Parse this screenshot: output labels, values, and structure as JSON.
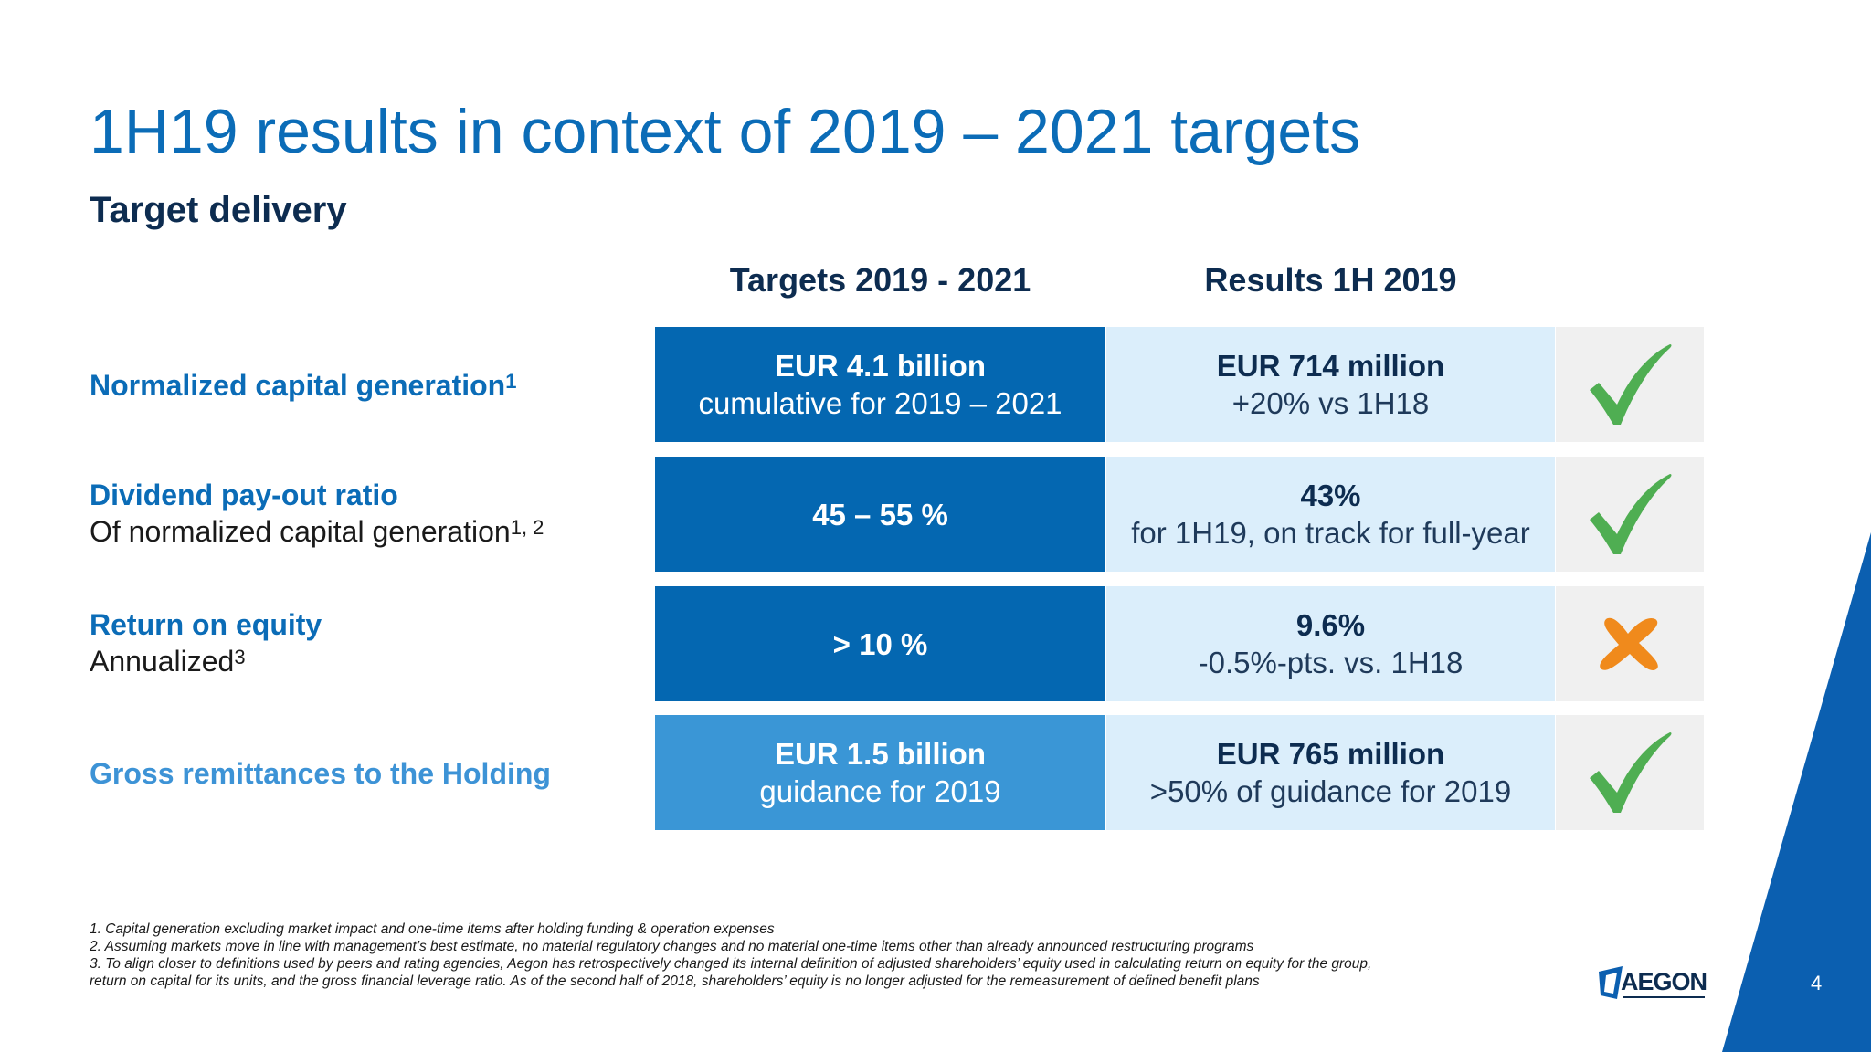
{
  "slide": {
    "title": "1H19 results in context of 2019 – 2021 targets",
    "subtitle": "Target delivery",
    "page_number": "4"
  },
  "table": {
    "headers": {
      "targets": "Targets 2019 - 2021",
      "results": "Results 1H 2019"
    },
    "rows": [
      {
        "label": "Normalized capital generation",
        "label_sup": "1",
        "sublabel": "",
        "sublabel_sup": "",
        "target_main": "EUR 4.1 billion",
        "target_sub": "cumulative for 2019 – 2021",
        "result_main": "EUR 714 million",
        "result_sub": "+20% vs 1H18",
        "status": "check-icon"
      },
      {
        "label": "Dividend pay-out ratio",
        "label_sup": "",
        "sublabel": "Of normalized capital generation",
        "sublabel_sup": "1, 2",
        "target_main": "45 – 55 %",
        "target_sub": "",
        "result_main": "43%",
        "result_sub": "for 1H19, on track for full-year",
        "status": "check-icon"
      },
      {
        "label": "Return on equity",
        "label_sup": "",
        "sublabel": "Annualized",
        "sublabel_sup": "3",
        "target_main": "> 10 %",
        "target_sub": "",
        "result_main": "9.6%",
        "result_sub": "-0.5%-pts. vs. 1H18",
        "status": "cross-icon"
      },
      {
        "label": "Gross remittances to the Holding",
        "label_sup": "",
        "sublabel": "",
        "sublabel_sup": "",
        "target_main": "EUR 1.5 billion",
        "target_sub": "guidance for 2019",
        "result_main": "EUR 765 million",
        "result_sub": ">50% of guidance for 2019",
        "status": "check-icon"
      }
    ]
  },
  "footnotes": [
    "1. Capital generation excluding market impact and one-time items after holding funding & operation expenses",
    "2. Assuming markets move in line with management’s best estimate, no material regulatory changes and no material one-time items other than already announced restructuring programs",
    "3. To align closer to definitions used by peers and rating agencies, Aegon has retrospectively changed its internal definition of adjusted shareholders’ equity used in calculating return on equity for the group,",
    "return on capital for its units, and the gross financial leverage ratio. As of the second half of 2018, shareholders’ equity is no longer adjusted for the remeasurement of defined benefit plans"
  ],
  "logo": {
    "text": "AEGON"
  },
  "colors": {
    "title_blue": "#0b6cb7",
    "dark_navy": "#0d2c50",
    "target_cell": "#0467b1",
    "target_cell_light": "#3a96d6",
    "result_cell": "#dbeefb",
    "mark_cell": "#f0f0f0",
    "check_green": "#4fae52",
    "cross_orange": "#f08a1c",
    "corner_blue": "#0b5fb0"
  }
}
